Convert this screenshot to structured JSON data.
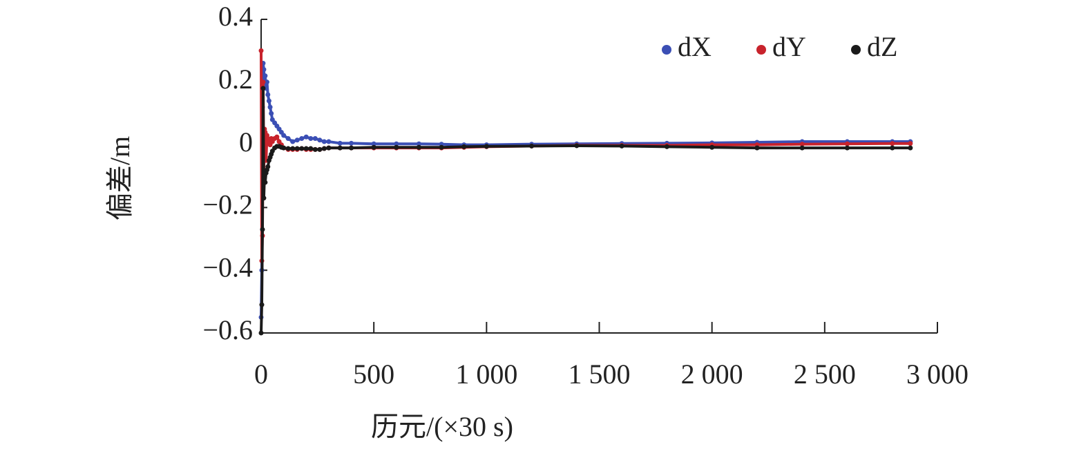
{
  "chart_data": {
    "type": "scatter",
    "xlabel": "历元/(×30 s)",
    "ylabel": "偏差/m",
    "x": [
      0,
      3,
      6,
      9,
      12,
      15,
      18,
      22,
      26,
      30,
      35,
      40,
      45,
      50,
      60,
      70,
      80,
      90,
      100,
      120,
      140,
      160,
      180,
      200,
      220,
      240,
      260,
      280,
      300,
      350,
      400,
      500,
      600,
      700,
      800,
      900,
      1000,
      1200,
      1400,
      1600,
      1800,
      2000,
      2200,
      2400,
      2600,
      2800,
      2880
    ],
    "series": [
      {
        "name": "dX",
        "color": "#3b4fb5",
        "values": [
          -0.55,
          -0.4,
          0.12,
          0.26,
          0.24,
          0.2,
          0.22,
          0.18,
          0.2,
          0.16,
          0.14,
          0.12,
          0.1,
          0.08,
          0.07,
          0.06,
          0.05,
          0.04,
          0.03,
          0.02,
          0.01,
          0.015,
          0.02,
          0.025,
          0.02,
          0.02,
          0.015,
          0.01,
          0.01,
          0.005,
          0.005,
          0.003,
          0.003,
          0.003,
          0.002,
          0,
          0,
          0.002,
          0.003,
          0.004,
          0.005,
          0.006,
          0.008,
          0.01,
          0.01,
          0.01,
          0.01
        ]
      },
      {
        "name": "dY",
        "color": "#c8232c",
        "values": [
          0.3,
          -0.37,
          -0.29,
          0.2,
          -0.1,
          0.05,
          0.04,
          -0.05,
          0.03,
          0.02,
          0.01,
          0,
          0.02,
          0.01,
          0.02,
          0.025,
          0.01,
          0,
          -0.01,
          -0.015,
          -0.015,
          -0.015,
          -0.012,
          -0.015,
          -0.015,
          -0.015,
          -0.015,
          -0.012,
          -0.01,
          -0.01,
          -0.01,
          -0.01,
          -0.01,
          -0.01,
          -0.01,
          -0.008,
          -0.006,
          -0.004,
          -0.002,
          -0.002,
          -0.002,
          0,
          0,
          0.002,
          0.003,
          0.004,
          0.004
        ]
      },
      {
        "name": "dZ",
        "color": "#1a1a1a",
        "values": [
          -0.6,
          -0.51,
          -0.27,
          0.18,
          -0.17,
          -0.1,
          -0.12,
          -0.09,
          -0.08,
          -0.07,
          -0.05,
          -0.04,
          -0.03,
          -0.02,
          -0.01,
          -0.005,
          -0.005,
          -0.008,
          -0.01,
          -0.012,
          -0.012,
          -0.012,
          -0.012,
          -0.012,
          -0.012,
          -0.015,
          -0.015,
          -0.012,
          -0.01,
          -0.01,
          -0.01,
          -0.008,
          -0.008,
          -0.008,
          -0.008,
          -0.006,
          -0.005,
          -0.004,
          -0.003,
          -0.004,
          -0.006,
          -0.008,
          -0.01,
          -0.01,
          -0.01,
          -0.01,
          -0.01
        ]
      }
    ],
    "xlim": [
      0,
      3000
    ],
    "xticks": [
      0,
      500,
      {
        "value": 1000,
        "label": "1 000"
      },
      {
        "value": 1500,
        "label": "1 500"
      },
      {
        "value": 2000,
        "label": "2 000"
      },
      {
        "value": 2500,
        "label": "2 500"
      },
      {
        "value": 3000,
        "label": "3 000"
      }
    ],
    "ylim": [
      -0.6,
      0.4
    ],
    "yticks": [
      0.4,
      0.2,
      0,
      {
        "value": -0.2,
        "label": "−0.2"
      },
      {
        "value": -0.4,
        "label": "−0.4"
      },
      {
        "value": -0.6,
        "label": "−0.6"
      }
    ],
    "grid": false,
    "legend": "upper right"
  }
}
